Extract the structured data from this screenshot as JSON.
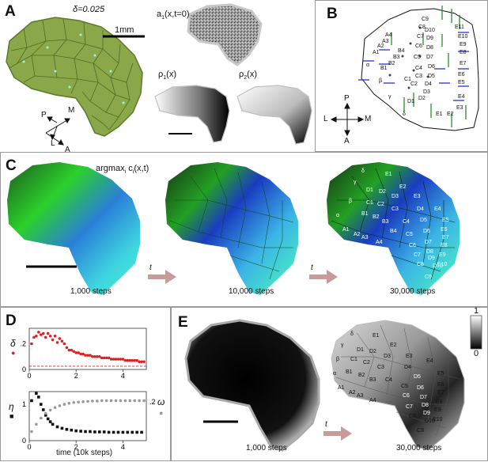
{
  "panels": {
    "A": {
      "label": "A",
      "delta": "δ=0.025",
      "scale": "1mm",
      "a1": "a",
      "a1_sub": "1",
      "a1_args": "(x,t=0)",
      "rho1": "ρ",
      "rho1_sub": "1",
      "rho1_args": "(x)",
      "rho2": "ρ",
      "rho2_sub": "2",
      "rho2_args": "(x)",
      "axes": {
        "m": "M",
        "p": "P",
        "l": "L",
        "a": "A"
      }
    },
    "B": {
      "label": "B",
      "axes": {
        "p": "P",
        "l": "L",
        "m": "M",
        "a": "A"
      },
      "cells": [
        "δ",
        "γ",
        "β",
        "α",
        "A1",
        "A2",
        "A3",
        "A4",
        "B1",
        "B2",
        "B3",
        "B4",
        "C1",
        "C2",
        "C3",
        "C4",
        "C5",
        "C6",
        "C7",
        "C8",
        "C9",
        "D1",
        "D2",
        "D3",
        "D4",
        "D5",
        "D6",
        "D7",
        "D8",
        "D9",
        "D10",
        "E1",
        "E2",
        "E3",
        "E4",
        "E5",
        "E6",
        "E7",
        "E8",
        "E9",
        "E10",
        "E11"
      ]
    },
    "C": {
      "label": "C",
      "title": "argmax",
      "title_sub": "i",
      "title_rest": " c",
      "title_sub2": "i",
      "title_args": "(x,t)",
      "steps": [
        "1,000 steps",
        "10,000 steps",
        "30,000 steps"
      ],
      "arrow_label": "t",
      "cells": [
        "δ",
        "E1",
        "γ",
        "D1",
        "D2",
        "E2",
        "D3",
        "E3",
        "C1",
        "C2",
        "C3",
        "β",
        "B1",
        "B2",
        "B3",
        "α",
        "A1",
        "A2",
        "A3",
        "A4",
        "B4",
        "C4",
        "C5",
        "C6",
        "C7",
        "C8",
        "C9",
        "D4",
        "D5",
        "D6",
        "D7",
        "D8",
        "D9",
        "D10",
        "E4",
        "E5",
        "E6",
        "E7",
        "E8",
        "E9",
        "E10"
      ]
    },
    "D": {
      "label": "D",
      "delta_label": "δ",
      "eta_label": "η",
      "omega_label": "ω",
      "xlabel": "time (10k steps)"
    },
    "E": {
      "label": "E",
      "steps": [
        "1,000 steps",
        "30,000 steps"
      ],
      "arrow_label": "t",
      "colorbar": [
        "1",
        "0"
      ],
      "cells": [
        "δ",
        "E1",
        "γ",
        "D1",
        "D2",
        "E2",
        "D3",
        "E3",
        "C1",
        "C2",
        "C3",
        "β",
        "B1",
        "B2",
        "α",
        "A1",
        "A2",
        "A3",
        "A4",
        "B3",
        "C4",
        "C5",
        "C6",
        "C7",
        "C8",
        "C9",
        "D4",
        "D5",
        "D6",
        "D7",
        "D8",
        "D9",
        "D10",
        "E4",
        "E5",
        "E6",
        "E7",
        "E8",
        "E9",
        "E10"
      ]
    }
  },
  "chart_data": [
    {
      "type": "scatter",
      "title": "",
      "ylabel": "δ",
      "xlim": [
        0,
        5
      ],
      "ylim": [
        0,
        0.32
      ],
      "yticks": [
        ".2",
        "0"
      ],
      "xticks": [
        "0",
        "2",
        "4"
      ],
      "series": [
        {
          "color": "#e02020",
          "x": [
            0.1,
            0.2,
            0.3,
            0.4,
            0.5,
            0.6,
            0.7,
            0.8,
            0.9,
            1.0,
            1.1,
            1.2,
            1.3,
            1.4,
            1.5,
            1.6,
            1.7,
            1.8,
            1.9,
            2.0,
            2.1,
            2.2,
            2.3,
            2.4,
            2.5,
            2.6,
            2.7,
            2.8,
            2.9,
            3.0,
            3.1,
            3.2,
            3.3,
            3.4,
            3.5,
            3.6,
            3.7,
            3.8,
            3.9,
            4.0,
            4.1,
            4.2,
            4.3,
            4.4,
            4.5,
            4.6,
            4.7,
            4.8,
            4.9
          ],
          "y": [
            0.2,
            0.25,
            0.26,
            0.29,
            0.27,
            0.28,
            0.25,
            0.28,
            0.26,
            0.23,
            0.26,
            0.21,
            0.24,
            0.22,
            0.2,
            0.17,
            0.15,
            0.15,
            0.14,
            0.13,
            0.13,
            0.12,
            0.12,
            0.11,
            0.11,
            0.11,
            0.1,
            0.1,
            0.1,
            0.1,
            0.09,
            0.09,
            0.09,
            0.09,
            0.08,
            0.08,
            0.08,
            0.08,
            0.08,
            0.08,
            0.07,
            0.07,
            0.07,
            0.07,
            0.07,
            0.07,
            0.06,
            0.06,
            0.06
          ]
        }
      ],
      "reference_line": 0.025
    },
    {
      "type": "scatter",
      "title": "",
      "ylabel": "η",
      "y2label": "ω",
      "xlabel": "time (10k steps)",
      "xlim": [
        0,
        5
      ],
      "ylim": [
        0,
        1.35
      ],
      "yticks": [
        "1",
        "0"
      ],
      "y2ticks": [
        ".2"
      ],
      "xticks": [
        "0",
        "2",
        "4"
      ],
      "series": [
        {
          "color": "#111111",
          "x": [
            0.1,
            0.3,
            0.4,
            0.5,
            0.6,
            0.7,
            0.8,
            0.9,
            1.0,
            1.2,
            1.4,
            1.6,
            1.8,
            2.0,
            2.2,
            2.4,
            2.6,
            2.8,
            3.0,
            3.2,
            3.4,
            3.6,
            3.8,
            4.0,
            4.2,
            4.4,
            4.6,
            4.8
          ],
          "y": [
            1.1,
            1.3,
            1.2,
            1.0,
            0.85,
            0.7,
            0.6,
            0.52,
            0.45,
            0.38,
            0.34,
            0.31,
            0.29,
            0.27,
            0.26,
            0.25,
            0.25,
            0.24,
            0.24,
            0.24,
            0.23,
            0.23,
            0.23,
            0.23,
            0.23,
            0.23,
            0.23,
            0.23
          ]
        },
        {
          "color": "#9a9a9a",
          "x": [
            0.1,
            0.3,
            0.5,
            0.7,
            0.9,
            1.1,
            1.3,
            1.5,
            1.7,
            1.9,
            2.1,
            2.3,
            2.5,
            2.7,
            2.9,
            3.1,
            3.3,
            3.5,
            3.7,
            3.9,
            4.1,
            4.3,
            4.5,
            4.7,
            4.9
          ],
          "y": [
            0.25,
            0.45,
            0.62,
            0.75,
            0.84,
            0.91,
            0.96,
            1.0,
            1.03,
            1.05,
            1.06,
            1.07,
            1.08,
            1.09,
            1.09,
            1.1,
            1.1,
            1.1,
            1.1,
            1.1,
            1.1,
            1.1,
            1.1,
            1.1,
            1.1
          ]
        }
      ]
    }
  ]
}
